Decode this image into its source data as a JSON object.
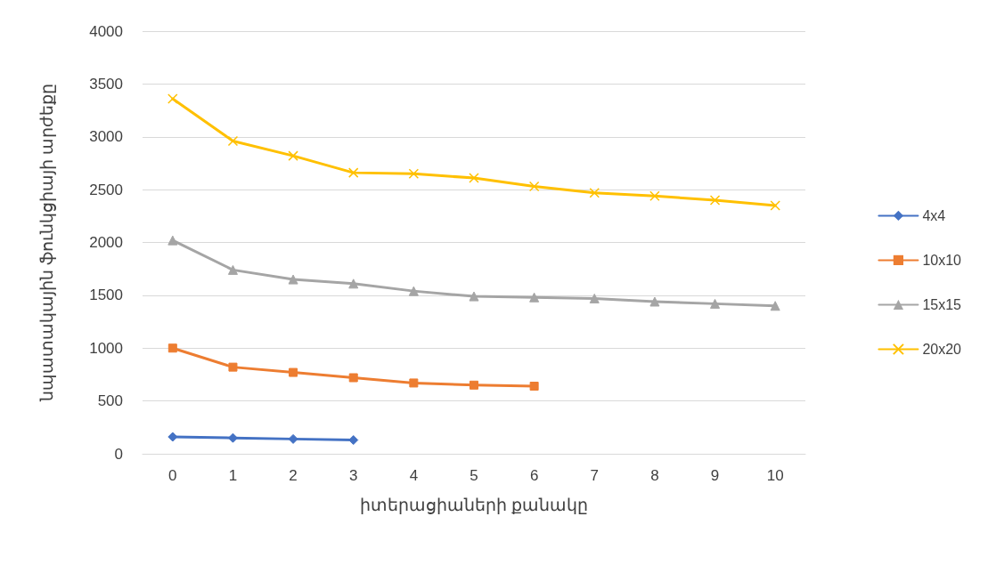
{
  "chart_data": {
    "type": "line",
    "xlabel": "իտերացիաների քանակը",
    "ylabel": "նպատակային ֆունկցիայի արժեքը",
    "categories": [
      "0",
      "1",
      "2",
      "3",
      "4",
      "5",
      "6",
      "7",
      "8",
      "9",
      "10"
    ],
    "ylim": [
      0,
      4000
    ],
    "yticks": [
      0,
      500,
      1000,
      1500,
      2000,
      2500,
      3000,
      3500,
      4000
    ],
    "grid": "y",
    "legend": "right",
    "line_style": "solid",
    "series": [
      {
        "name": "4x4",
        "color": "#4472c4",
        "marker": "diamond",
        "values": [
          160,
          150,
          140,
          130,
          null,
          null,
          null,
          null,
          null,
          null,
          null
        ]
      },
      {
        "name": "10x10",
        "color": "#ed7d31",
        "marker": "square",
        "values": [
          1000,
          820,
          770,
          720,
          670,
          650,
          640,
          null,
          null,
          null,
          null
        ]
      },
      {
        "name": "15x15",
        "color": "#a5a5a5",
        "marker": "triangle",
        "values": [
          2020,
          1740,
          1650,
          1610,
          1540,
          1490,
          1480,
          1470,
          1440,
          1420,
          1400
        ]
      },
      {
        "name": "20x20",
        "color": "#ffc000",
        "marker": "cross",
        "values": [
          3360,
          2960,
          2820,
          2660,
          2650,
          2610,
          2530,
          2470,
          2440,
          2400,
          2350
        ]
      }
    ]
  }
}
